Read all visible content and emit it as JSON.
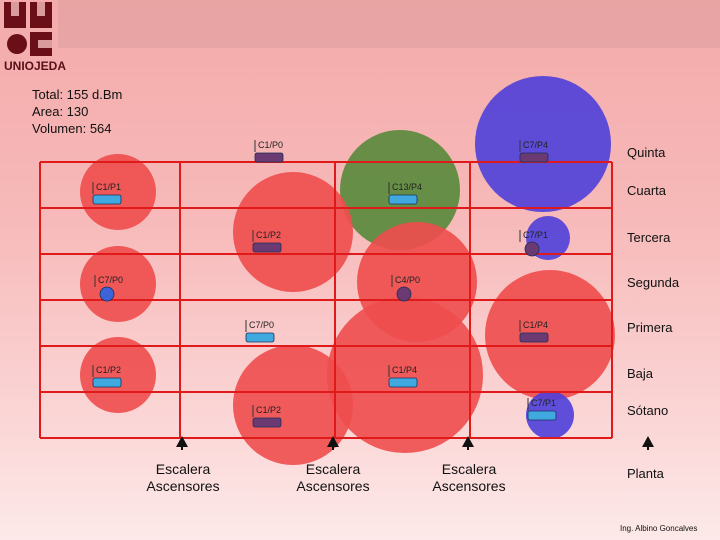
{
  "logo": {
    "name": "UNIOJEDA"
  },
  "stats": {
    "total": "Total: 155 d.Bm",
    "area": "Area: 130",
    "volumen": "Volumen: 564"
  },
  "floors": [
    "Quinta",
    "Cuarta",
    "Tercera",
    "Segunda",
    "Primera",
    "Baja",
    "Sótano",
    "Planta"
  ],
  "stairs": {
    "line1": "Escalera",
    "line2": "Ascensores"
  },
  "routers": [
    {
      "label": "C1/P0",
      "color": "#6b3a73"
    },
    {
      "label": "C7/P4",
      "color": "#6b3a73"
    },
    {
      "label": "C1/P1",
      "color": "#3fa9e0"
    },
    {
      "label": "C13/P4",
      "color": "#3fa9e0"
    },
    {
      "label": "C1/P2",
      "color": "#6b3a73"
    },
    {
      "label": "C7/P1",
      "color": "#6b3a73"
    },
    {
      "label": "C7/P0",
      "color": "#3d63d8"
    },
    {
      "label": "C4/P0",
      "color": "#6b3a73"
    },
    {
      "label": "C7/P0",
      "color": "#3fa9e0"
    },
    {
      "label": "C1/P4",
      "color": "#6b3a73"
    },
    {
      "label": "C1/P2",
      "color": "#3fa9e0"
    },
    {
      "label": "C1/P4",
      "color": "#3fa9e0"
    },
    {
      "label": "C1/P2",
      "color": "#6b3a73"
    },
    {
      "label": "C7/P1",
      "color": "#3fa9e0"
    }
  ],
  "credit": "Ing. Albino Goncalves",
  "colors": {
    "red": "#ee4d4d",
    "green": "#5a8a3d",
    "blue": "#4e3fd9",
    "grid": "#e01a1a"
  }
}
